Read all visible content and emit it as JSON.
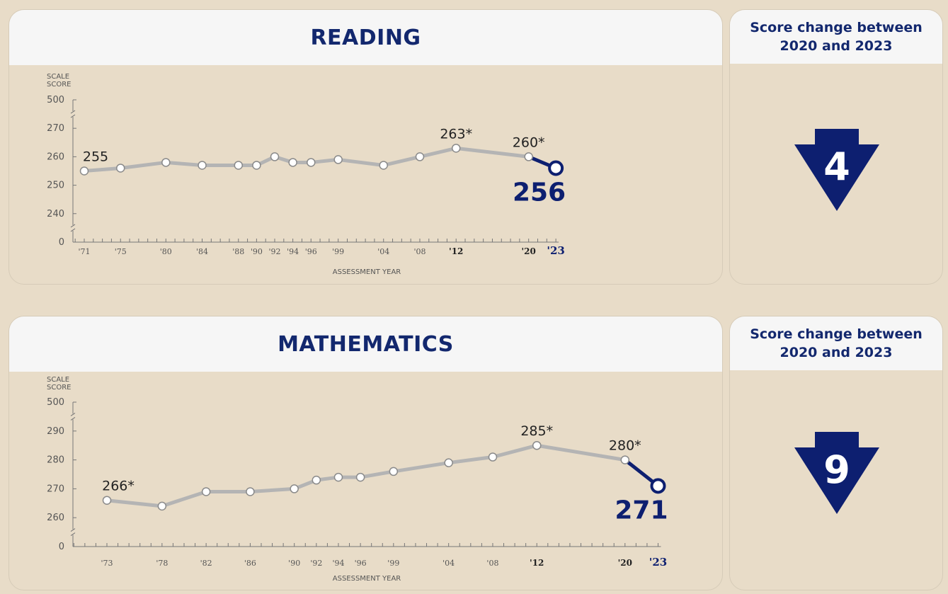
{
  "colors": {
    "navy": "#0d1f70",
    "line_gray": "#b4b4b4",
    "axis_gray": "#777777",
    "panel_bg": "#e8dcc8",
    "header_bg": "#f6f6f6"
  },
  "chart_data": [
    {
      "type": "line",
      "title": "READING",
      "ylabel_lines": [
        "SCALE",
        "SCORE"
      ],
      "xlabel": "ASSESSMENT YEAR",
      "y_ticks": [
        "500",
        "270",
        "260",
        "250",
        "240",
        "0"
      ],
      "y_tick_values": [
        500,
        270,
        260,
        250,
        240,
        0
      ],
      "x_years": [
        1971,
        1975,
        1980,
        1984,
        1988,
        1990,
        1992,
        1994,
        1996,
        1999,
        2004,
        2008,
        2012,
        2020,
        2023
      ],
      "x_labels": [
        "'71",
        "'75",
        "'80",
        "'84",
        "'88",
        "'90",
        "'92",
        "'94",
        "'96",
        "'99",
        "'04",
        "'08",
        "'12",
        "'20",
        "'23"
      ],
      "values": [
        255,
        256,
        258,
        257,
        257,
        257,
        260,
        258,
        258,
        259,
        257,
        260,
        263,
        260,
        256
      ],
      "point_labels": [
        {
          "index": 0,
          "text": "255"
        },
        {
          "index": 12,
          "text": "263*"
        },
        {
          "index": 13,
          "text": "260*"
        }
      ],
      "final_label": "256",
      "score_change": {
        "title_line1": "Score change between",
        "title_line2": "2020 and 2023",
        "value": "4",
        "direction": "down"
      }
    },
    {
      "type": "line",
      "title": "MATHEMATICS",
      "ylabel_lines": [
        "SCALE",
        "SCORE"
      ],
      "xlabel": "ASSESSMENT YEAR",
      "y_ticks": [
        "500",
        "290",
        "280",
        "270",
        "260",
        "0"
      ],
      "y_tick_values": [
        500,
        290,
        280,
        270,
        260,
        0
      ],
      "x_years": [
        1973,
        1978,
        1982,
        1986,
        1990,
        1992,
        1994,
        1996,
        1999,
        2004,
        2008,
        2012,
        2020,
        2023
      ],
      "x_labels": [
        "'73",
        "'78",
        "'82",
        "'86",
        "'90",
        "'92",
        "'94",
        "'96",
        "'99",
        "'04",
        "'08",
        "'12",
        "'20",
        "'23"
      ],
      "values": [
        266,
        264,
        269,
        269,
        270,
        273,
        274,
        274,
        276,
        279,
        281,
        285,
        280,
        271
      ],
      "point_labels": [
        {
          "index": 0,
          "text": "266*"
        },
        {
          "index": 11,
          "text": "285*"
        },
        {
          "index": 12,
          "text": "280*"
        }
      ],
      "final_label": "271",
      "score_change": {
        "title_line1": "Score change between",
        "title_line2": "2020 and 2023",
        "value": "9",
        "direction": "down"
      }
    }
  ]
}
